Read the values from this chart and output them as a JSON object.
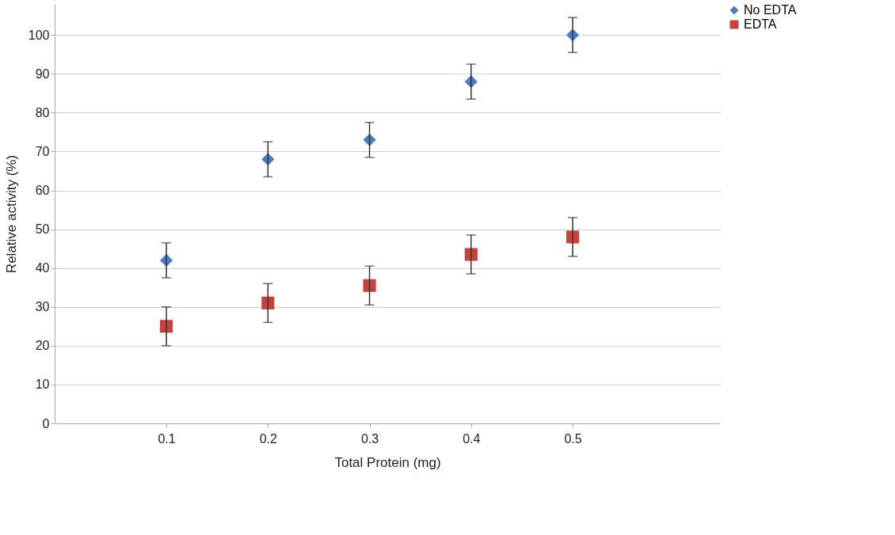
{
  "chart_data": {
    "type": "scatter",
    "xlabel": "Total Protein (mg)",
    "ylabel": "Relative activity (%)",
    "x": [
      0.1,
      0.2,
      0.3,
      0.4,
      0.5
    ],
    "series": [
      {
        "name": "No EDTA",
        "color": "#4a7bc8",
        "marker": "diamond",
        "values": [
          42,
          68,
          73,
          88,
          100
        ],
        "errors": [
          4.5,
          4.5,
          4.5,
          4.5,
          4.5
        ]
      },
      {
        "name": "EDTA",
        "color": "#c8413a",
        "marker": "square",
        "values": [
          25,
          31,
          35.5,
          43.5,
          48
        ],
        "errors": [
          5,
          5,
          5,
          5,
          5
        ]
      }
    ],
    "xlim": [
      -0.01,
      0.645
    ],
    "xticks": [
      0.1,
      0.2,
      0.3,
      0.4,
      0.5
    ],
    "ylim": [
      0,
      108
    ],
    "yticks": [
      0,
      10,
      20,
      30,
      40,
      50,
      60,
      70,
      80,
      90,
      100
    ],
    "grid": "y",
    "legend": "right"
  }
}
